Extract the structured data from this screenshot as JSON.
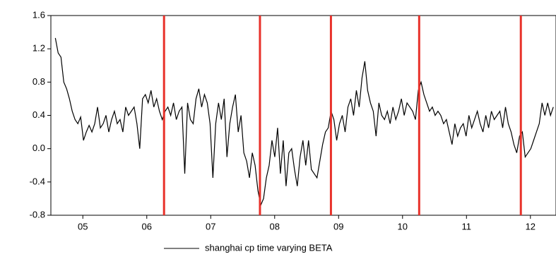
{
  "chart_data": {
    "type": "line",
    "x": [
      2005.07,
      2005.114,
      2005.158,
      2005.202,
      2005.246,
      2005.29,
      2005.334,
      2005.378,
      2005.422,
      2005.466,
      2005.51,
      2005.554,
      2005.598,
      2005.642,
      2005.686,
      2005.73,
      2005.774,
      2005.818,
      2005.862,
      2005.906,
      2005.95,
      2005.994,
      2006.038,
      2006.082,
      2006.126,
      2006.17,
      2006.214,
      2006.258,
      2006.302,
      2006.346,
      2006.39,
      2006.434,
      2006.478,
      2006.522,
      2006.566,
      2006.61,
      2006.654,
      2006.698,
      2006.742,
      2006.786,
      2006.83,
      2006.874,
      2006.918,
      2006.962,
      2007.006,
      2007.05,
      2007.094,
      2007.138,
      2007.182,
      2007.226,
      2007.27,
      2007.314,
      2007.358,
      2007.402,
      2007.446,
      2007.49,
      2007.534,
      2007.578,
      2007.622,
      2007.666,
      2007.71,
      2007.754,
      2007.798,
      2007.842,
      2007.886,
      2007.93,
      2007.974,
      2008.018,
      2008.062,
      2008.106,
      2008.15,
      2008.194,
      2008.238,
      2008.282,
      2008.326,
      2008.37,
      2008.414,
      2008.458,
      2008.502,
      2008.546,
      2008.59,
      2008.634,
      2008.678,
      2008.722,
      2008.766,
      2008.81,
      2008.854,
      2008.898,
      2008.942,
      2008.986,
      2009.03,
      2009.074,
      2009.118,
      2009.162,
      2009.206,
      2009.25,
      2009.294,
      2009.338,
      2009.382,
      2009.426,
      2009.47,
      2009.514,
      2009.558,
      2009.602,
      2009.646,
      2009.69,
      2009.734,
      2009.778,
      2009.822,
      2009.866,
      2009.91,
      2009.954,
      2009.998,
      2010.042,
      2010.086,
      2010.13,
      2010.174,
      2010.218,
      2010.262,
      2010.306,
      2010.35,
      2010.394,
      2010.438,
      2010.482,
      2010.526,
      2010.57,
      2010.614,
      2010.658,
      2010.702,
      2010.746,
      2010.79,
      2010.834,
      2010.878,
      2010.922,
      2010.966,
      2011.01,
      2011.054,
      2011.098,
      2011.142,
      2011.186,
      2011.23,
      2011.274,
      2011.318,
      2011.362,
      2011.406,
      2011.45,
      2011.494,
      2011.538,
      2011.582,
      2011.626,
      2011.67,
      2011.714,
      2011.758,
      2011.802,
      2011.846,
      2011.89,
      2011.934,
      2011.978,
      2012.022,
      2012.066,
      2012.11,
      2012.154,
      2012.198,
      2012.242,
      2012.286,
      2012.33,
      2012.374,
      2012.418,
      2012.462,
      2012.506,
      2012.55,
      2012.594,
      2012.638,
      2012.682,
      2012.726,
      2012.77,
      2012.814,
      2012.858
    ],
    "series": [
      {
        "name": "shanghai cp time varying BETA",
        "color": "#000000",
        "values": [
          1.33,
          1.15,
          1.1,
          0.8,
          0.72,
          0.6,
          0.45,
          0.35,
          0.3,
          0.38,
          0.1,
          0.2,
          0.28,
          0.2,
          0.3,
          0.5,
          0.25,
          0.3,
          0.4,
          0.2,
          0.35,
          0.45,
          0.3,
          0.35,
          0.2,
          0.5,
          0.4,
          0.45,
          0.5,
          0.3,
          0,
          0.6,
          0.65,
          0.55,
          0.7,
          0.5,
          0.6,
          0.45,
          0.35,
          0.45,
          0.5,
          0.4,
          0.55,
          0.35,
          0.45,
          0.5,
          -0.3,
          0.55,
          0.35,
          0.3,
          0.6,
          0.72,
          0.5,
          0.65,
          0.55,
          0.3,
          -0.35,
          0.3,
          0.55,
          0.35,
          0.6,
          -0.1,
          0.3,
          0.5,
          0.65,
          0.2,
          0.4,
          -0.05,
          -0.15,
          -0.35,
          -0.05,
          -0.2,
          -0.5,
          -0.68,
          -0.6,
          -0.35,
          -0.2,
          0.1,
          -0.1,
          0.25,
          -0.3,
          0.1,
          -0.45,
          -0.05,
          0,
          -0.25,
          -0.45,
          -0.1,
          0.1,
          -0.2,
          0.1,
          -0.25,
          -0.3,
          -0.35,
          -0.15,
          0.05,
          0.2,
          0.25,
          0.45,
          0.35,
          0.1,
          0.3,
          0.4,
          0.2,
          0.5,
          0.6,
          0.4,
          0.7,
          0.5,
          0.85,
          1.05,
          0.7,
          0.55,
          0.45,
          0.15,
          0.55,
          0.4,
          0.35,
          0.45,
          0.3,
          0.5,
          0.35,
          0.45,
          0.6,
          0.4,
          0.55,
          0.5,
          0.45,
          0.35,
          0.7,
          0.8,
          0.65,
          0.55,
          0.45,
          0.5,
          0.4,
          0.45,
          0.4,
          0.3,
          0.35,
          0.2,
          0.05,
          0.3,
          0.15,
          0.25,
          0.3,
          0.15,
          0.4,
          0.25,
          0.35,
          0.45,
          0.3,
          0.2,
          0.4,
          0.25,
          0.45,
          0.35,
          0.4,
          0.45,
          0.25,
          0.5,
          0.3,
          0.2,
          0.05,
          -0.05,
          0.15,
          0.2,
          -0.1,
          -0.05,
          0,
          0.1,
          0.2,
          0.3,
          0.55,
          0.4,
          0.55,
          0.4,
          0.5
        ]
      }
    ],
    "xlim": [
      2005,
      2012.9
    ],
    "xticks": [
      {
        "value": 2005.5,
        "label": "05"
      },
      {
        "value": 2006.5,
        "label": "06"
      },
      {
        "value": 2007.5,
        "label": "07"
      },
      {
        "value": 2008.5,
        "label": "08"
      },
      {
        "value": 2009.5,
        "label": "09"
      },
      {
        "value": 2010.5,
        "label": "10"
      },
      {
        "value": 2011.5,
        "label": "11"
      },
      {
        "value": 2012.5,
        "label": "12"
      }
    ],
    "ylim": [
      -0.8,
      1.6
    ],
    "yticks": [
      -0.8,
      -0.4,
      {
        "value": 0,
        "label": "0.0"
      },
      0.4,
      0.8,
      1.2,
      1.6
    ],
    "vlines": {
      "color": "#e8312a",
      "values": [
        2006.77,
        2008.27,
        2009.38,
        2010.76,
        2012.35
      ]
    },
    "legend": "bottom"
  }
}
